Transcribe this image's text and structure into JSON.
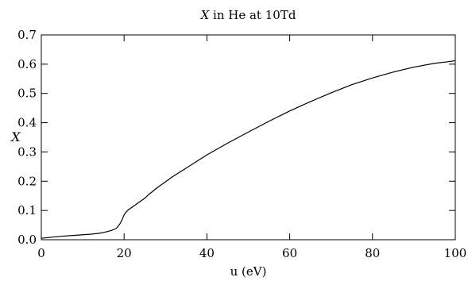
{
  "chart_data": {
    "type": "line",
    "title_var": "X",
    "title_rest": " in He at 10Td",
    "xlabel": "u (eV)",
    "ylabel": "X",
    "xlim": [
      0,
      100
    ],
    "ylim": [
      0,
      0.7
    ],
    "xticks": [
      0,
      20,
      40,
      60,
      80,
      100
    ],
    "yticks": [
      "0.0",
      "0.1",
      "0.2",
      "0.3",
      "0.4",
      "0.5",
      "0.6",
      "0.7"
    ],
    "grid": false,
    "series": [
      {
        "color": "#000000",
        "x": [
          0,
          2,
          5,
          8,
          10,
          12,
          14,
          15,
          16,
          17,
          18,
          18.5,
          19,
          19.5,
          20,
          20.5,
          21,
          22,
          23,
          24,
          25,
          26,
          28,
          30,
          32,
          35,
          38,
          40,
          45,
          50,
          55,
          60,
          65,
          70,
          75,
          80,
          85,
          90,
          95,
          98,
          100
        ],
        "y": [
          0.005,
          0.008,
          0.012,
          0.015,
          0.017,
          0.019,
          0.022,
          0.025,
          0.028,
          0.032,
          0.038,
          0.045,
          0.055,
          0.068,
          0.085,
          0.095,
          0.102,
          0.112,
          0.122,
          0.132,
          0.142,
          0.155,
          0.178,
          0.198,
          0.218,
          0.245,
          0.272,
          0.29,
          0.33,
          0.368,
          0.405,
          0.44,
          0.472,
          0.502,
          0.53,
          0.553,
          0.573,
          0.59,
          0.603,
          0.608,
          0.612
        ]
      }
    ]
  }
}
